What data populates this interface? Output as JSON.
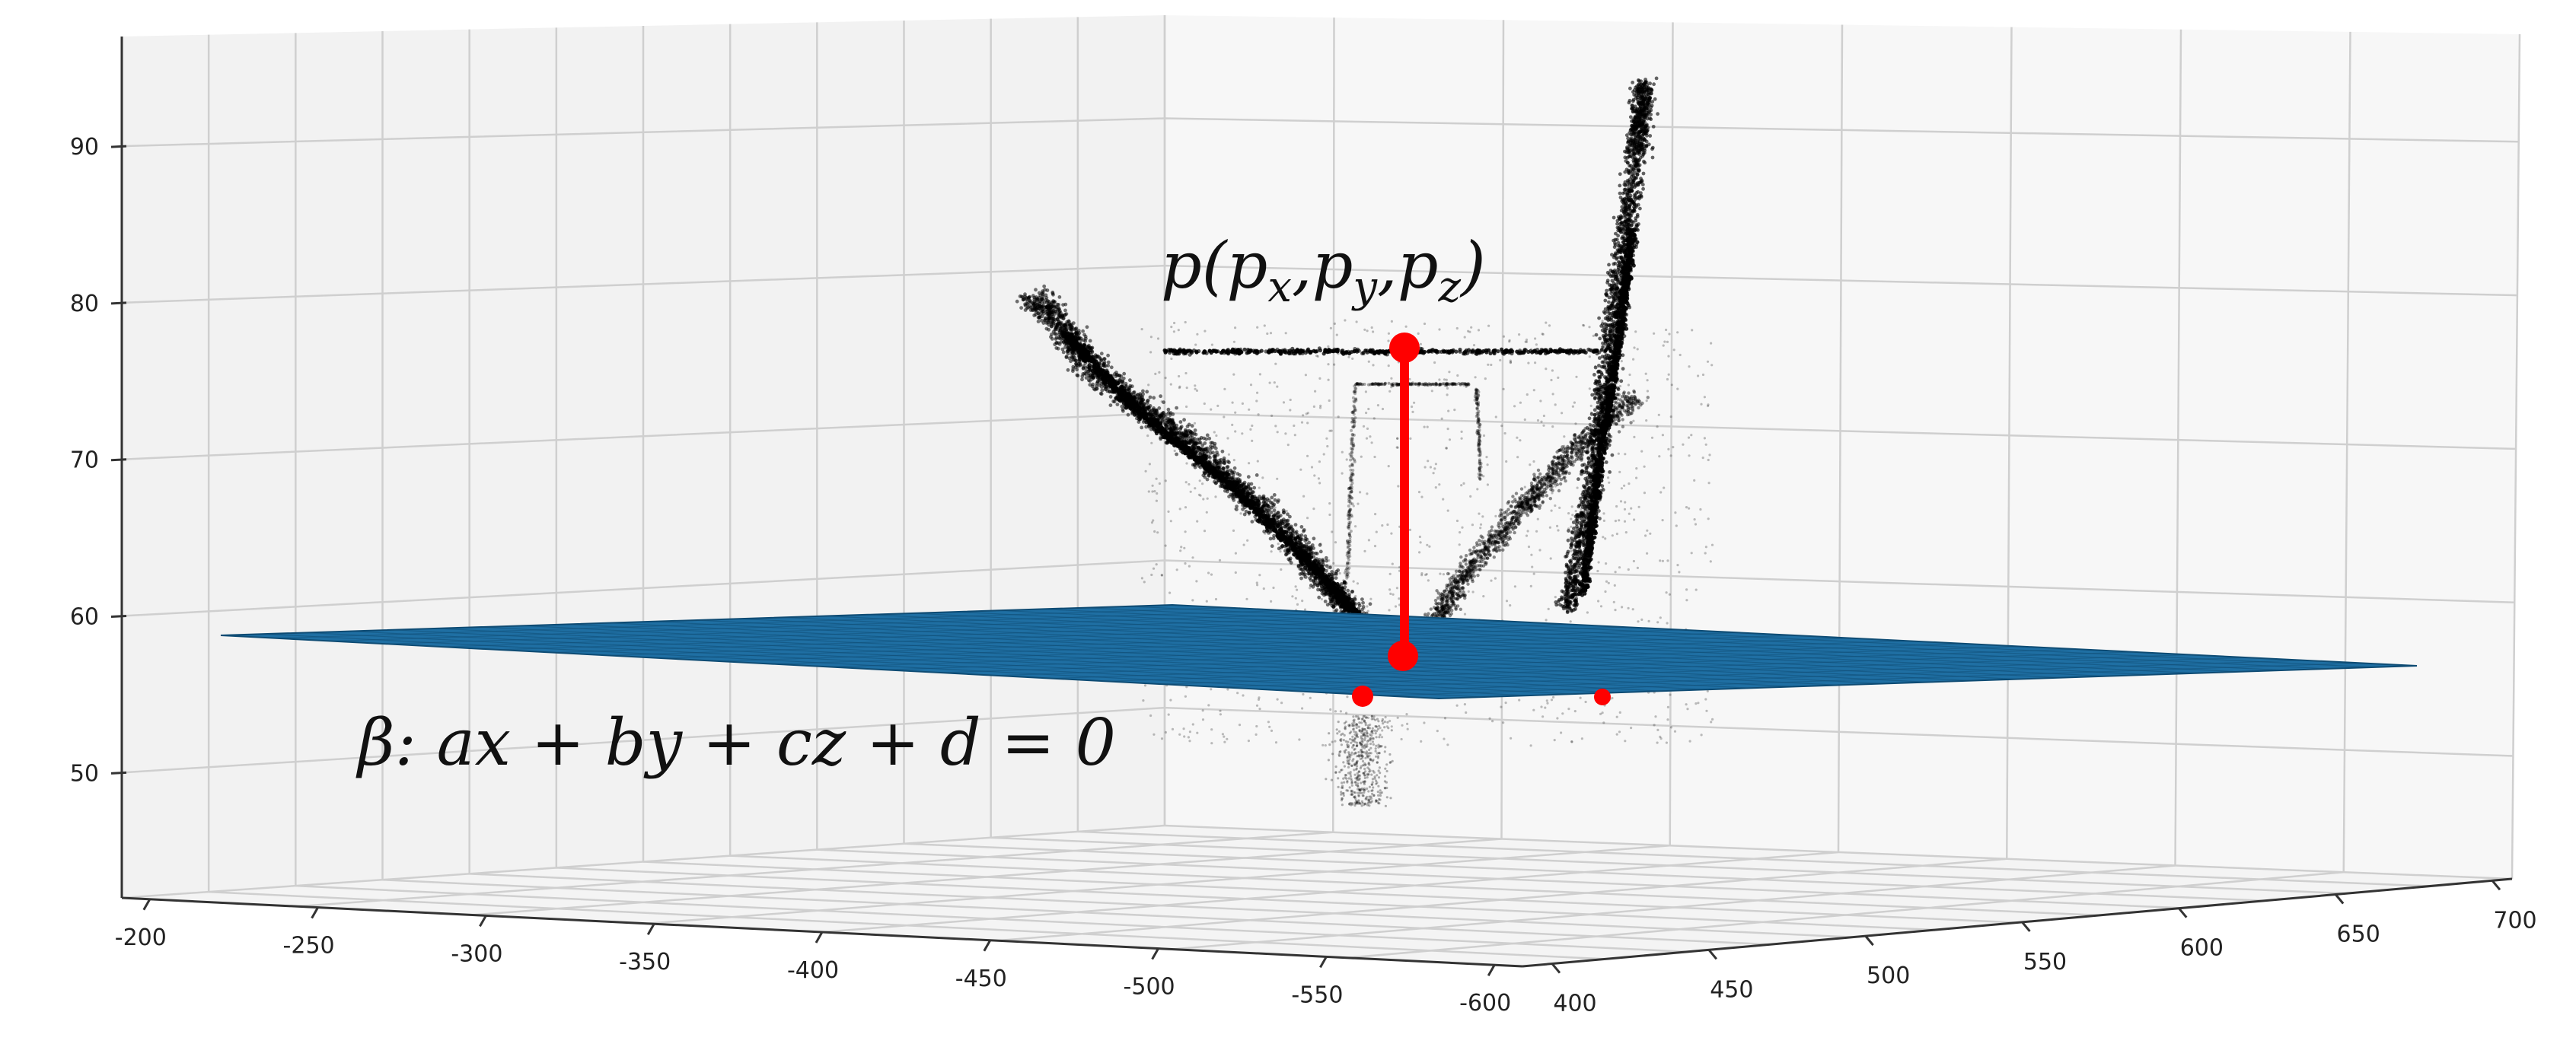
{
  "chart_data": {
    "type": "scatter",
    "projection": "3d",
    "grid": true,
    "axes": {
      "x": {
        "ticks": [
          "-200",
          "-250",
          "-300",
          "-350",
          "-400",
          "-450",
          "-500",
          "-550",
          "-600"
        ],
        "range": [
          -200,
          -600
        ]
      },
      "y": {
        "ticks": [
          "400",
          "450",
          "500",
          "550",
          "600",
          "650",
          "700"
        ],
        "range": [
          400,
          700
        ]
      },
      "z": {
        "ticks": [
          "50",
          "60",
          "70",
          "80",
          "90"
        ],
        "range": [
          42,
          97
        ]
      }
    },
    "annotations": {
      "point_label": {
        "base": "p(p",
        "sub_x": "x",
        "sep1": ",p",
        "sub_y": "y",
        "sep2": ",p",
        "sub_z": "z",
        "close": ")"
      },
      "plane_label": "β: ax + by + cz + d = 0"
    },
    "colors": {
      "plane": "#1f6fa3",
      "plane_edge": "#0f4c74",
      "points": "#000000",
      "marker": "#ff0000",
      "pane_left": "#f2f2f2",
      "pane_back": "#f7f7f7",
      "floor": "#f4f4f4",
      "grid": "#cfcfcf"
    }
  }
}
